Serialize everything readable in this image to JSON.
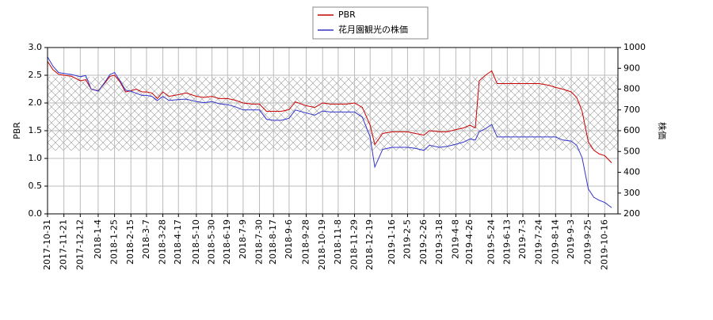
{
  "chart_data": {
    "type": "line",
    "x": [
      "2017-10-31",
      "2017-11-7",
      "2017-11-14",
      "2017-11-21",
      "2017-12-1",
      "2017-12-12",
      "2017-12-19",
      "2017-12-26",
      "2018-1-4",
      "2018-1-12",
      "2018-1-19",
      "2018-1-25",
      "2018-2-1",
      "2018-2-8",
      "2018-2-15",
      "2018-2-22",
      "2018-3-1",
      "2018-3-7",
      "2018-3-14",
      "2018-3-21",
      "2018-3-28",
      "2018-4-5",
      "2018-4-17",
      "2018-4-27",
      "2018-5-10",
      "2018-5-20",
      "2018-5-30",
      "2018-6-8",
      "2018-6-19",
      "2018-6-29",
      "2018-7-9",
      "2018-7-20",
      "2018-7-30",
      "2018-8-8",
      "2018-8-17",
      "2018-8-27",
      "2018-9-6",
      "2018-9-14",
      "2018-9-28",
      "2018-10-9",
      "2018-10-19",
      "2018-10-29",
      "2018-11-8",
      "2018-11-19",
      "2018-11-29",
      "2018-12-9",
      "2018-12-19",
      "2018-12-25",
      "2019-1-4",
      "2019-1-16",
      "2019-1-28",
      "2019-2-5",
      "2019-2-15",
      "2019-2-26",
      "2019-3-5",
      "2019-3-18",
      "2019-3-28",
      "2019-4-8",
      "2019-4-18",
      "2019-4-26",
      "2019-5-3",
      "2019-5-8",
      "2019-5-16",
      "2019-5-24",
      "2019-5-31",
      "2019-6-13",
      "2019-6-24",
      "2019-7-3",
      "2019-7-15",
      "2019-7-24",
      "2019-8-5",
      "2019-8-14",
      "2019-8-23",
      "2019-9-3",
      "2019-9-10",
      "2019-9-17",
      "2019-9-25",
      "2019-10-2",
      "2019-10-9",
      "2019-10-16",
      "2019-10-25"
    ],
    "series": [
      {
        "name": "PBR",
        "color": "#cc0000",
        "values": [
          2.75,
          2.6,
          2.52,
          2.5,
          2.48,
          2.4,
          2.42,
          2.25,
          2.22,
          2.35,
          2.48,
          2.5,
          2.38,
          2.2,
          2.22,
          2.25,
          2.2,
          2.2,
          2.18,
          2.08,
          2.2,
          2.12,
          2.15,
          2.18,
          2.12,
          2.1,
          2.12,
          2.08,
          2.08,
          2.05,
          2.0,
          1.98,
          1.98,
          1.85,
          1.85,
          1.85,
          1.88,
          2.02,
          1.95,
          1.92,
          2.0,
          1.98,
          1.98,
          1.98,
          2.0,
          1.92,
          1.6,
          1.25,
          1.45,
          1.48,
          1.48,
          1.48,
          1.45,
          1.42,
          1.5,
          1.48,
          1.48,
          1.52,
          1.55,
          1.6,
          1.55,
          2.4,
          2.5,
          2.58,
          2.35,
          2.35,
          2.35,
          2.35,
          2.35,
          2.35,
          2.32,
          2.28,
          2.25,
          2.2,
          2.1,
          1.85,
          1.3,
          1.15,
          1.08,
          1.05,
          0.92
        ]
      },
      {
        "name": "花月園観光の株価",
        "color": "#3333cc",
        "axis": "y2",
        "values": [
          955,
          910,
          880,
          875,
          870,
          860,
          865,
          800,
          790,
          830,
          870,
          880,
          840,
          795,
          790,
          780,
          770,
          770,
          765,
          745,
          765,
          745,
          750,
          752,
          740,
          735,
          740,
          730,
          725,
          715,
          700,
          700,
          700,
          655,
          650,
          650,
          660,
          700,
          685,
          675,
          695,
          690,
          690,
          690,
          690,
          665,
          570,
          425,
          510,
          520,
          520,
          520,
          515,
          505,
          530,
          520,
          525,
          535,
          545,
          560,
          555,
          595,
          610,
          630,
          570,
          570,
          570,
          570,
          570,
          570,
          570,
          570,
          555,
          550,
          530,
          470,
          320,
          280,
          265,
          255,
          230
        ]
      }
    ],
    "xlim": [
      "2017-10-31",
      "2019-11-2"
    ],
    "xticks": [
      "2017-10-31",
      "2017-11-21",
      "2017-12-12",
      "2018-1-4",
      "2018-1-25",
      "2018-2-15",
      "2018-3-7",
      "2018-3-28",
      "2018-4-17",
      "2018-5-10",
      "2018-5-30",
      "2018-6-19",
      "2018-7-9",
      "2018-7-30",
      "2018-8-17",
      "2018-9-6",
      "2018-9-28",
      "2018-10-19",
      "2018-11-8",
      "2018-11-29",
      "2018-12-19",
      "2019-1-16",
      "2019-2-5",
      "2019-2-26",
      "2019-3-18",
      "2019-4-8",
      "2019-4-26",
      "2019-5-24",
      "2019-6-13",
      "2019-7-3",
      "2019-7-24",
      "2019-8-14",
      "2019-9-3",
      "2019-9-25",
      "2019-10-16"
    ],
    "ylim": [
      0,
      3
    ],
    "yticks": [
      {
        "value": 0,
        "label": "0.0"
      },
      {
        "value": 0.5,
        "label": "0.5"
      },
      {
        "value": 1,
        "label": "1.0"
      },
      {
        "value": 1.5,
        "label": "1.5"
      },
      {
        "value": 2,
        "label": "2.0"
      },
      {
        "value": 2.5,
        "label": "2.5"
      },
      {
        "value": 3,
        "label": "3.0"
      }
    ],
    "y2lim": [
      200,
      1000
    ],
    "y2ticks": [
      200,
      300,
      400,
      500,
      600,
      700,
      800,
      900,
      1000
    ],
    "ylabel": "PBR",
    "y2label": "株価",
    "hatch_range": [
      1.14,
      2.47
    ],
    "grid": true,
    "legend": "upper center"
  }
}
